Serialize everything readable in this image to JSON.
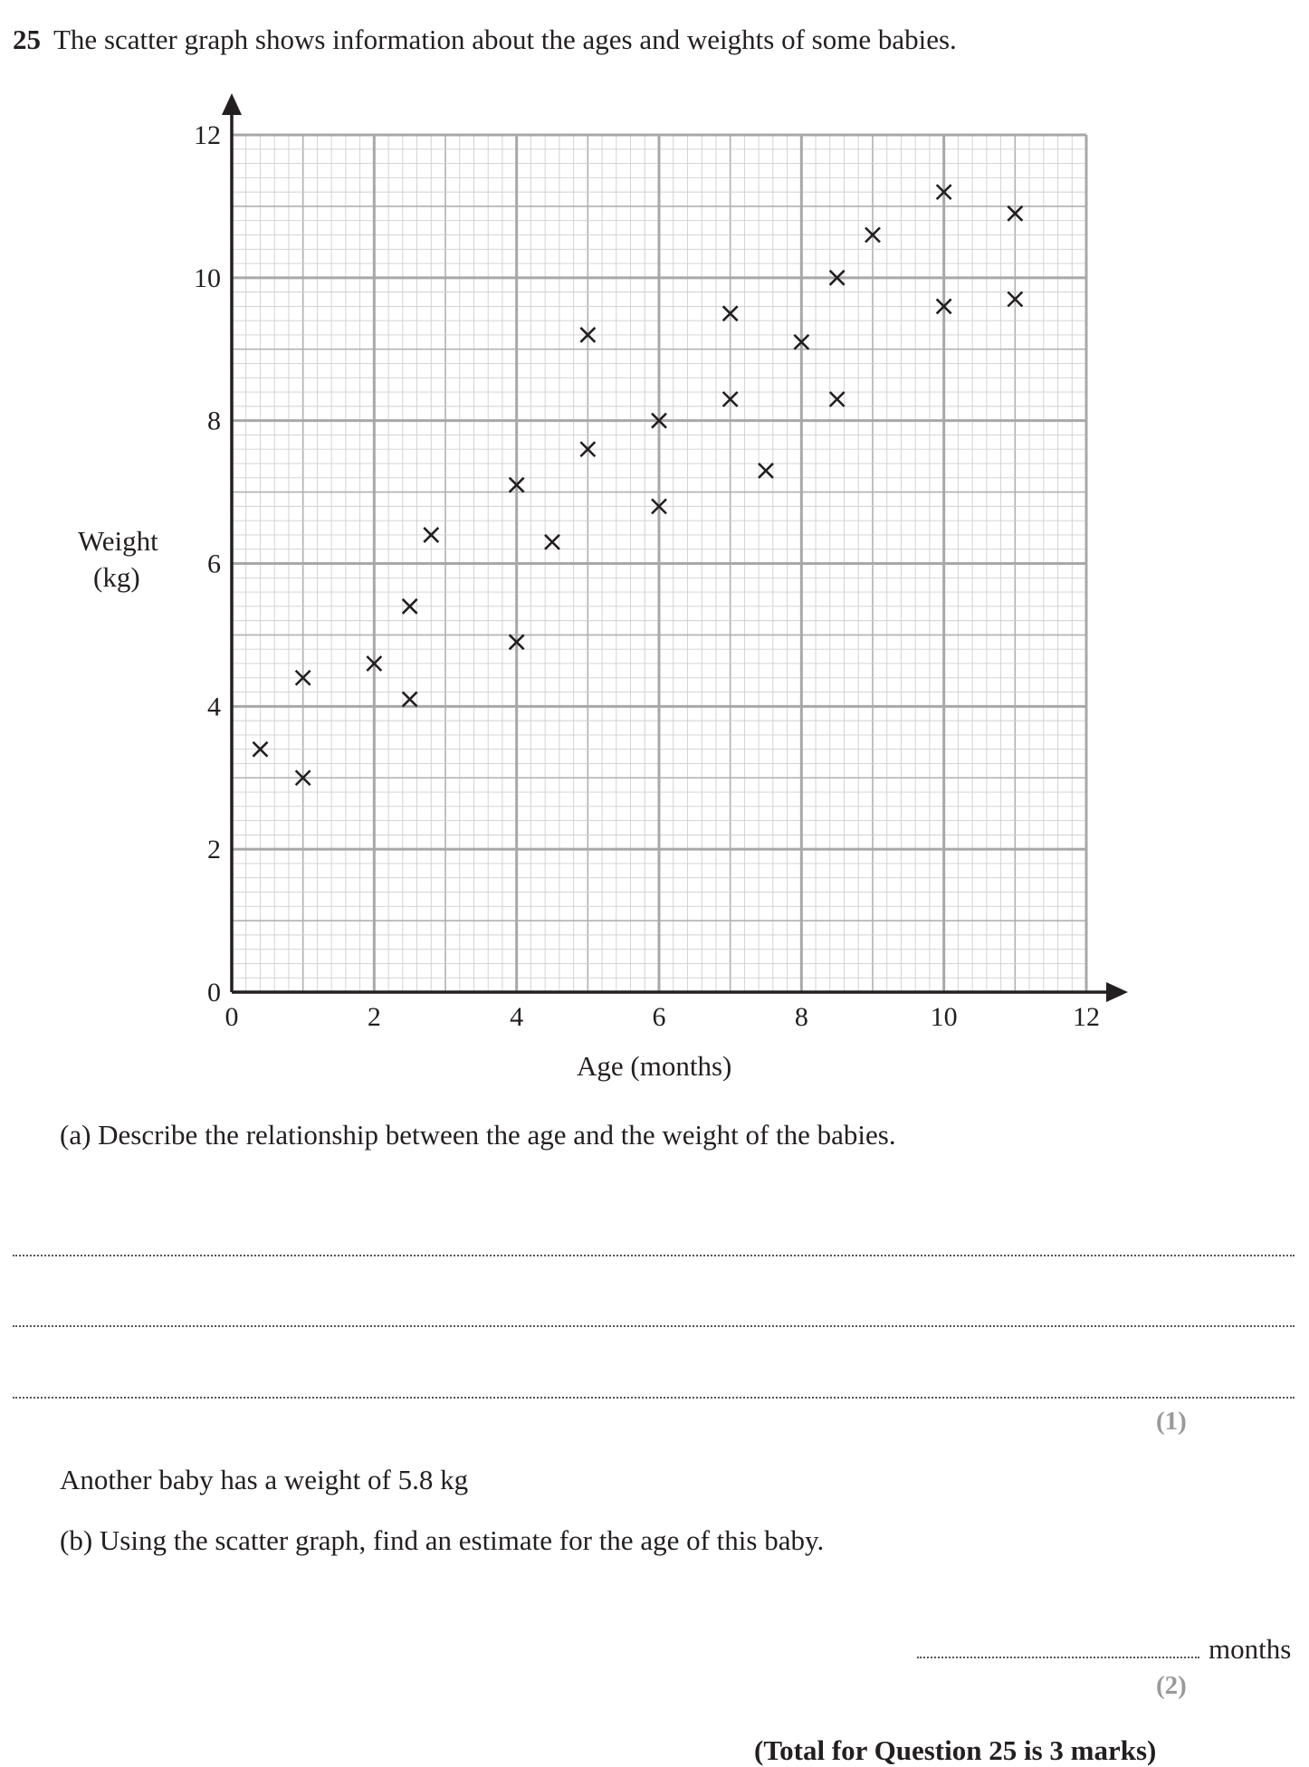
{
  "question": {
    "number": "25",
    "text": "The scatter graph shows information about the ages and weights of some babies."
  },
  "chart_data": {
    "type": "scatter",
    "title": "",
    "xlabel": "Age (months)",
    "ylabel_line1": "Weight",
    "ylabel_line2": "(kg)",
    "xlim": [
      0,
      12
    ],
    "ylim": [
      0,
      12
    ],
    "xticks": [
      "0",
      "2",
      "4",
      "6",
      "8",
      "10",
      "12"
    ],
    "yticks": [
      "0",
      "2",
      "4",
      "6",
      "8",
      "10",
      "12"
    ],
    "grid": true,
    "marker": "x",
    "points": [
      {
        "x": 0.4,
        "y": 3.4
      },
      {
        "x": 1,
        "y": 3.0
      },
      {
        "x": 1,
        "y": 4.4
      },
      {
        "x": 2,
        "y": 4.6
      },
      {
        "x": 2.5,
        "y": 4.1
      },
      {
        "x": 2.5,
        "y": 5.4
      },
      {
        "x": 2.8,
        "y": 6.4
      },
      {
        "x": 4,
        "y": 4.9
      },
      {
        "x": 4,
        "y": 7.1
      },
      {
        "x": 4.5,
        "y": 6.3
      },
      {
        "x": 5,
        "y": 7.6
      },
      {
        "x": 5,
        "y": 9.2
      },
      {
        "x": 6,
        "y": 6.8
      },
      {
        "x": 6,
        "y": 8.0
      },
      {
        "x": 7,
        "y": 8.3
      },
      {
        "x": 7,
        "y": 9.5
      },
      {
        "x": 7.5,
        "y": 7.3
      },
      {
        "x": 8,
        "y": 9.1
      },
      {
        "x": 8.5,
        "y": 8.3
      },
      {
        "x": 8.5,
        "y": 10.0
      },
      {
        "x": 9,
        "y": 10.6
      },
      {
        "x": 10,
        "y": 9.6
      },
      {
        "x": 10,
        "y": 11.2
      },
      {
        "x": 11,
        "y": 9.7
      },
      {
        "x": 11,
        "y": 10.9
      }
    ]
  },
  "part_a": {
    "text": "(a) Describe the relationship between the age and the weight of the babies.",
    "marks": "(1)"
  },
  "part_b": {
    "intro": "Another baby has a weight of 5.8 kg",
    "text": "(b) Using the scatter graph, find an estimate for the age of this baby.",
    "unit": "months",
    "marks": "(2)"
  },
  "total": "(Total for Question 25 is 3 marks)"
}
